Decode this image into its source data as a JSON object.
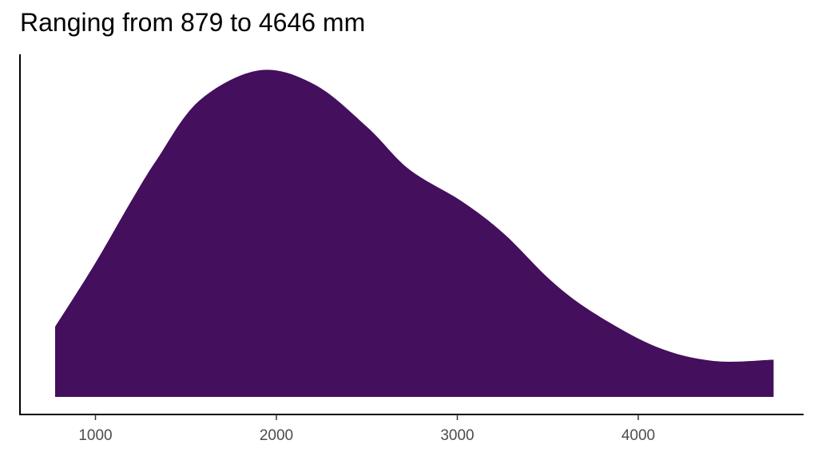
{
  "chart_data": {
    "type": "area",
    "title": "Ranging from 879 to 4646 mm",
    "xlabel": "",
    "ylabel": "",
    "xlim": [
      580,
      4920
    ],
    "ylim": [
      0,
      1.05
    ],
    "x_ticks": [
      1000,
      2000,
      3000,
      4000
    ],
    "x_tick_labels": [
      "1000",
      "2000",
      "3000",
      "4000"
    ],
    "y_ticks_shown": false,
    "grid": false,
    "legend": "none",
    "fill_color": "#440F5D",
    "series": [
      {
        "x": [
          777,
          994,
          1197,
          1342,
          1574,
          1907,
          2212,
          2502,
          2733,
          3024,
          3255,
          3516,
          3749,
          4097,
          4417,
          4748
        ],
        "y": [
          0.215,
          0.405,
          0.599,
          0.729,
          0.907,
          1.0,
          0.956,
          0.826,
          0.697,
          0.599,
          0.501,
          0.357,
          0.259,
          0.154,
          0.11,
          0.114
        ]
      }
    ]
  }
}
